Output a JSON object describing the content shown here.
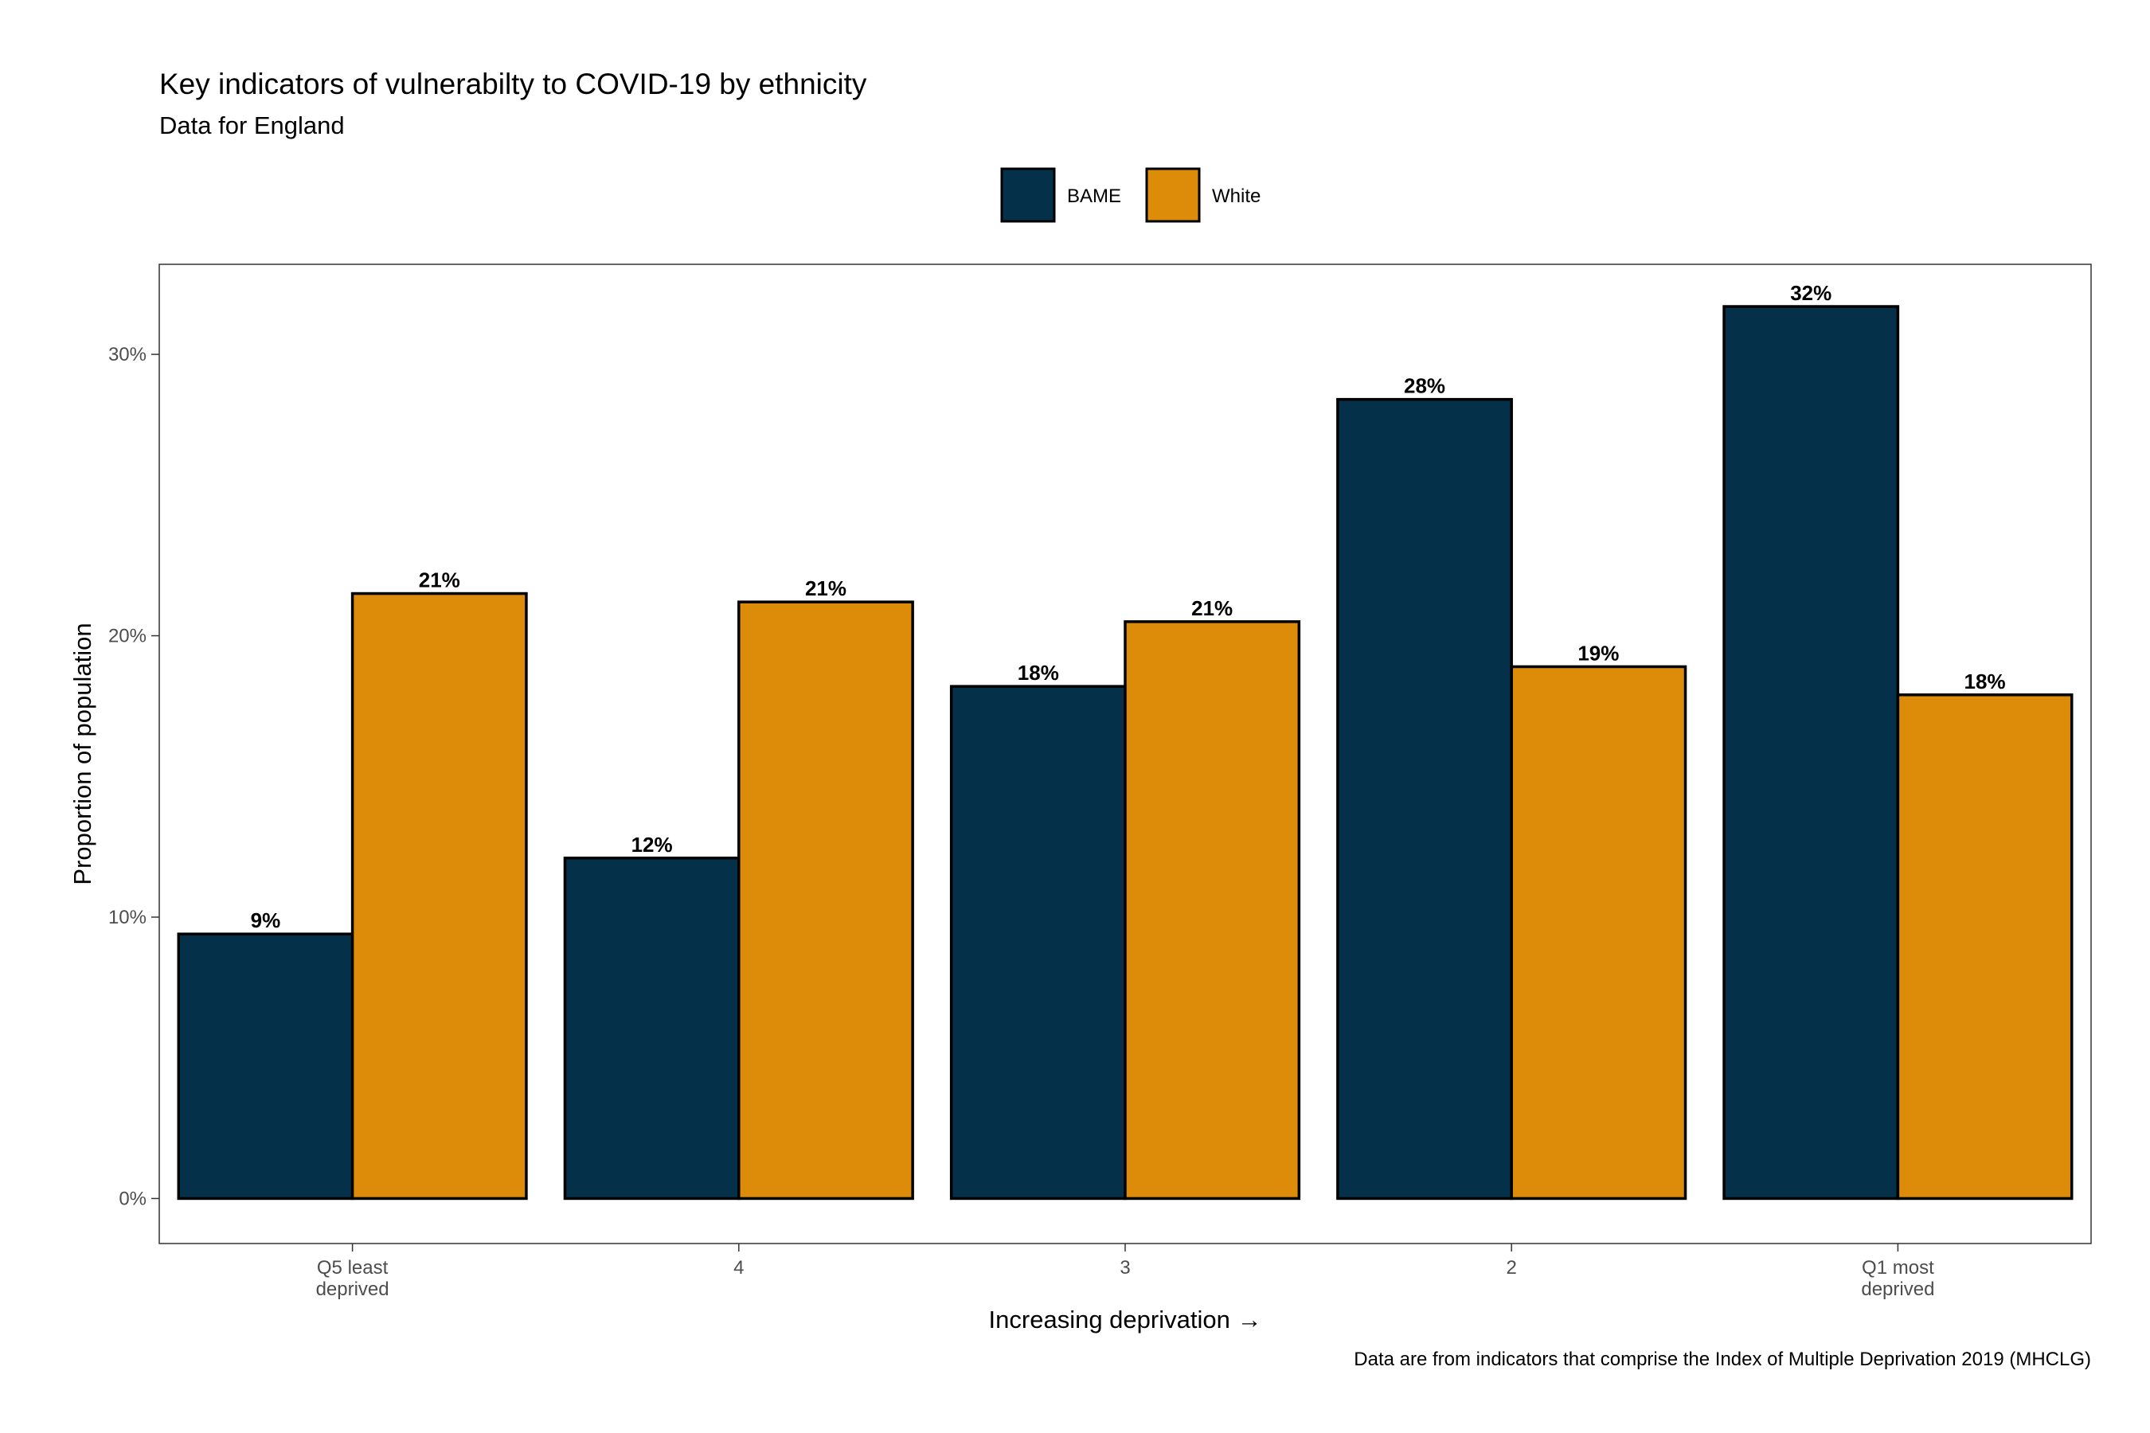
{
  "chart_data": {
    "type": "bar",
    "title": "Key indicators of vulnerabilty to COVID-19 by ethnicity",
    "subtitle": "Data for England",
    "xlabel": "Increasing deprivation →",
    "ylabel": "Proportion of population",
    "caption": "Data are from indicators that comprise the Index of Multiple Deprivation 2019 (MHCLG)",
    "categories": [
      [
        "Q5 least",
        "deprived"
      ],
      [
        "4"
      ],
      [
        "3"
      ],
      [
        "2"
      ],
      [
        "Q1 most",
        "deprived"
      ]
    ],
    "series": [
      {
        "name": "BAME",
        "color": "#05304a",
        "values": [
          9.4,
          12.1,
          18.2,
          28.4,
          31.7
        ],
        "labels": [
          "9%",
          "12%",
          "18%",
          "28%",
          "32%"
        ]
      },
      {
        "name": "White",
        "color": "#dd8c09",
        "values": [
          21.5,
          21.2,
          20.5,
          18.9,
          17.9
        ],
        "labels": [
          "21%",
          "21%",
          "21%",
          "19%",
          "18%"
        ]
      }
    ],
    "ylim": [
      -1.6,
      33.2
    ],
    "yticks": [
      0,
      10,
      20,
      30
    ],
    "ytick_labels": [
      "0%",
      "10%",
      "20%",
      "30%"
    ],
    "legend_position": "top",
    "grid": false
  }
}
